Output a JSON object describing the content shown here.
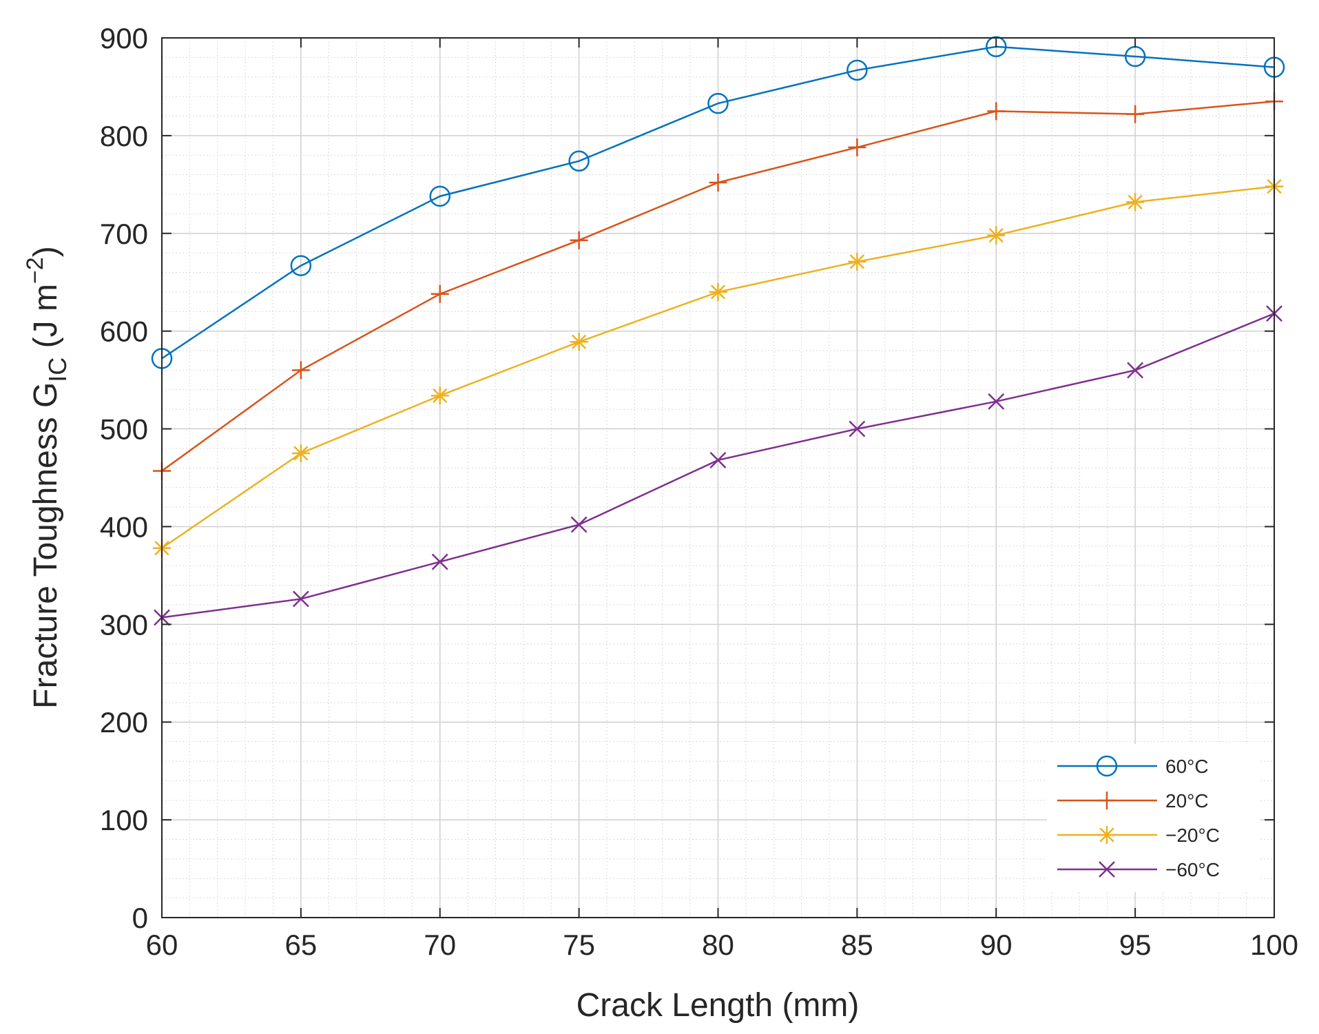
{
  "chart_data": {
    "type": "line",
    "title": "",
    "xlabel": "Crack Length (mm)",
    "ylabel": {
      "main": "Fracture Toughness G",
      "subscript": "IC",
      "unit_open": " (J m",
      "unit_exp": "−2",
      "unit_close": ")"
    },
    "xlim": [
      60,
      100
    ],
    "ylim": [
      0,
      900
    ],
    "x_ticks": [
      "60",
      "65",
      "70",
      "75",
      "80",
      "85",
      "90",
      "95",
      "100"
    ],
    "y_ticks": [
      "0",
      "100",
      "200",
      "300",
      "400",
      "500",
      "600",
      "700",
      "800",
      "900"
    ],
    "grid": true,
    "minor_grid": true,
    "legend_position": "bottom-right",
    "x": [
      60,
      65,
      70,
      75,
      80,
      85,
      90,
      95,
      100
    ],
    "series": [
      {
        "name": "60°C",
        "color": "#0072BD",
        "marker": "circle",
        "values": [
          572,
          667,
          738,
          774,
          833,
          867,
          891,
          881,
          870
        ]
      },
      {
        "name": "20°C",
        "color": "#D95319",
        "marker": "plus",
        "values": [
          457,
          560,
          638,
          693,
          752,
          788,
          825,
          822,
          835
        ]
      },
      {
        "name": "−20°C",
        "color": "#EDB120",
        "marker": "asterisk",
        "values": [
          378,
          475,
          534,
          589,
          640,
          671,
          698,
          732,
          748
        ]
      },
      {
        "name": "−60°C",
        "color": "#7E2F8E",
        "marker": "cross",
        "values": [
          307,
          326,
          364,
          402,
          468,
          500,
          528,
          560,
          618
        ]
      }
    ]
  }
}
